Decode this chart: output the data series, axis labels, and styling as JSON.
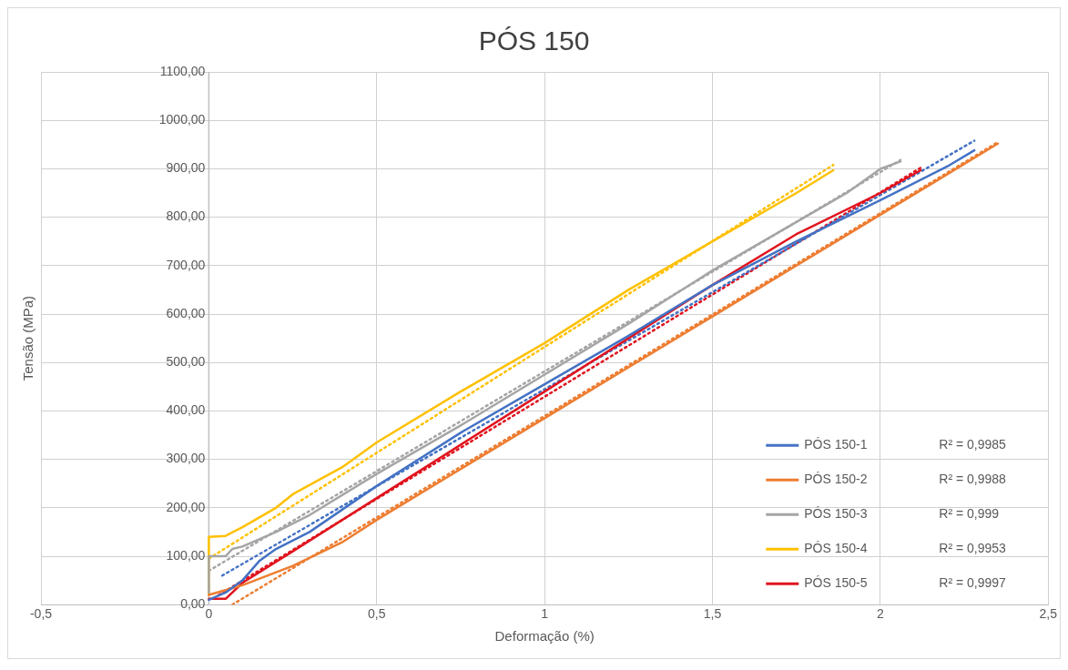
{
  "chart_data": {
    "type": "line",
    "title": "PÓS 150",
    "xlabel": "Deformação (%)",
    "ylabel": "Tensão (MPa)",
    "xlim": [
      -0.5,
      2.5
    ],
    "xticks": [
      {
        "value": -0.5,
        "label": "-0,5"
      },
      0,
      {
        "value": 0.5,
        "label": "0,5"
      },
      1,
      {
        "value": 1.5,
        "label": "1,5"
      },
      2,
      {
        "value": 2.5,
        "label": "2,5"
      }
    ],
    "ylim": [
      0,
      1100
    ],
    "yticks": [
      {
        "value": 0,
        "label": "0,00"
      },
      {
        "value": 100,
        "label": "100,00"
      },
      {
        "value": 200,
        "label": "200,00"
      },
      {
        "value": 300,
        "label": "300,00"
      },
      {
        "value": 400,
        "label": "400,00"
      },
      {
        "value": 500,
        "label": "500,00"
      },
      {
        "value": 600,
        "label": "600,00"
      },
      {
        "value": 700,
        "label": "700,00"
      },
      {
        "value": 800,
        "label": "800,00"
      },
      {
        "value": 900,
        "label": "900,00"
      },
      {
        "value": 1000,
        "label": "1000,00"
      },
      {
        "value": 1100,
        "label": "1100,00"
      }
    ],
    "grid": true,
    "legend": "bottom right",
    "marker": "none",
    "line_style": "solid",
    "annotations": [
      "R² = 0,9985",
      "R² = 0,9988",
      "R² = 0,999",
      "R² = 0,9953",
      "R² = 0,9997"
    ],
    "series": [
      {
        "name": "PÓS 150-1",
        "color": "#4472c4",
        "x": [
          0,
          0.05,
          0.1,
          0.15,
          0.2,
          0.3,
          0.5,
          0.75,
          1,
          1.25,
          1.5,
          1.75,
          2,
          2.2,
          2.28
        ],
        "values": [
          10,
          25,
          50,
          90,
          115,
          150,
          245,
          355,
          455,
          555,
          660,
          750,
          835,
          905,
          938
        ]
      },
      {
        "name": "PÓS 150-2",
        "color": "#ed7d31",
        "x": [
          0,
          0.1,
          0.25,
          0.4,
          0.5,
          0.75,
          1,
          1.25,
          1.5,
          1.75,
          2,
          2.35
        ],
        "values": [
          20,
          40,
          80,
          130,
          175,
          280,
          385,
          490,
          595,
          700,
          805,
          952
        ]
      },
      {
        "name": "PÓS 150-3",
        "color": "#a5a5a5",
        "x": [
          0,
          0,
          0.05,
          0.07,
          0.1,
          0.2,
          0.3,
          0.5,
          0.75,
          1,
          1.25,
          1.5,
          1.75,
          1.9,
          2,
          2.06
        ],
        "values": [
          25,
          100,
          100,
          115,
          120,
          150,
          185,
          270,
          370,
          475,
          580,
          690,
          790,
          850,
          900,
          915
        ]
      },
      {
        "name": "PÓS 150-4",
        "color": "#ffc000",
        "x": [
          0,
          0,
          0.05,
          0.1,
          0.2,
          0.25,
          0.4,
          0.5,
          0.75,
          1,
          1.25,
          1.5,
          1.75,
          1.86
        ],
        "values": [
          20,
          140,
          142,
          160,
          200,
          228,
          285,
          335,
          440,
          540,
          650,
          750,
          850,
          897
        ]
      },
      {
        "name": "PÓS 150-5",
        "color": "#e0141e",
        "x": [
          0,
          0.05,
          0.1,
          0.25,
          0.5,
          0.75,
          1,
          1.25,
          1.5,
          1.75,
          2,
          2.12
        ],
        "values": [
          12,
          12,
          45,
          110,
          220,
          330,
          440,
          550,
          660,
          765,
          850,
          897
        ]
      },
      {
        "type": "line",
        "line_style": "dotted",
        "color": "#4472c4",
        "x": [
          0.04,
          2.28
        ],
        "values": [
          60,
          958
        ]
      },
      {
        "type": "line",
        "line_style": "dotted",
        "color": "#ed7d31",
        "x": [
          0.07,
          2.35
        ],
        "values": [
          0,
          955
        ]
      },
      {
        "type": "line",
        "line_style": "dotted",
        "color": "#a5a5a5",
        "x": [
          0,
          2.06
        ],
        "values": [
          70,
          918
        ]
      },
      {
        "type": "line",
        "line_style": "dotted",
        "color": "#ffc000",
        "x": [
          0,
          1.86
        ],
        "values": [
          95,
          908
        ]
      },
      {
        "type": "line",
        "line_style": "dotted",
        "color": "#e0141e",
        "x": [
          0.03,
          2.12
        ],
        "values": [
          20,
          902
        ]
      }
    ]
  }
}
